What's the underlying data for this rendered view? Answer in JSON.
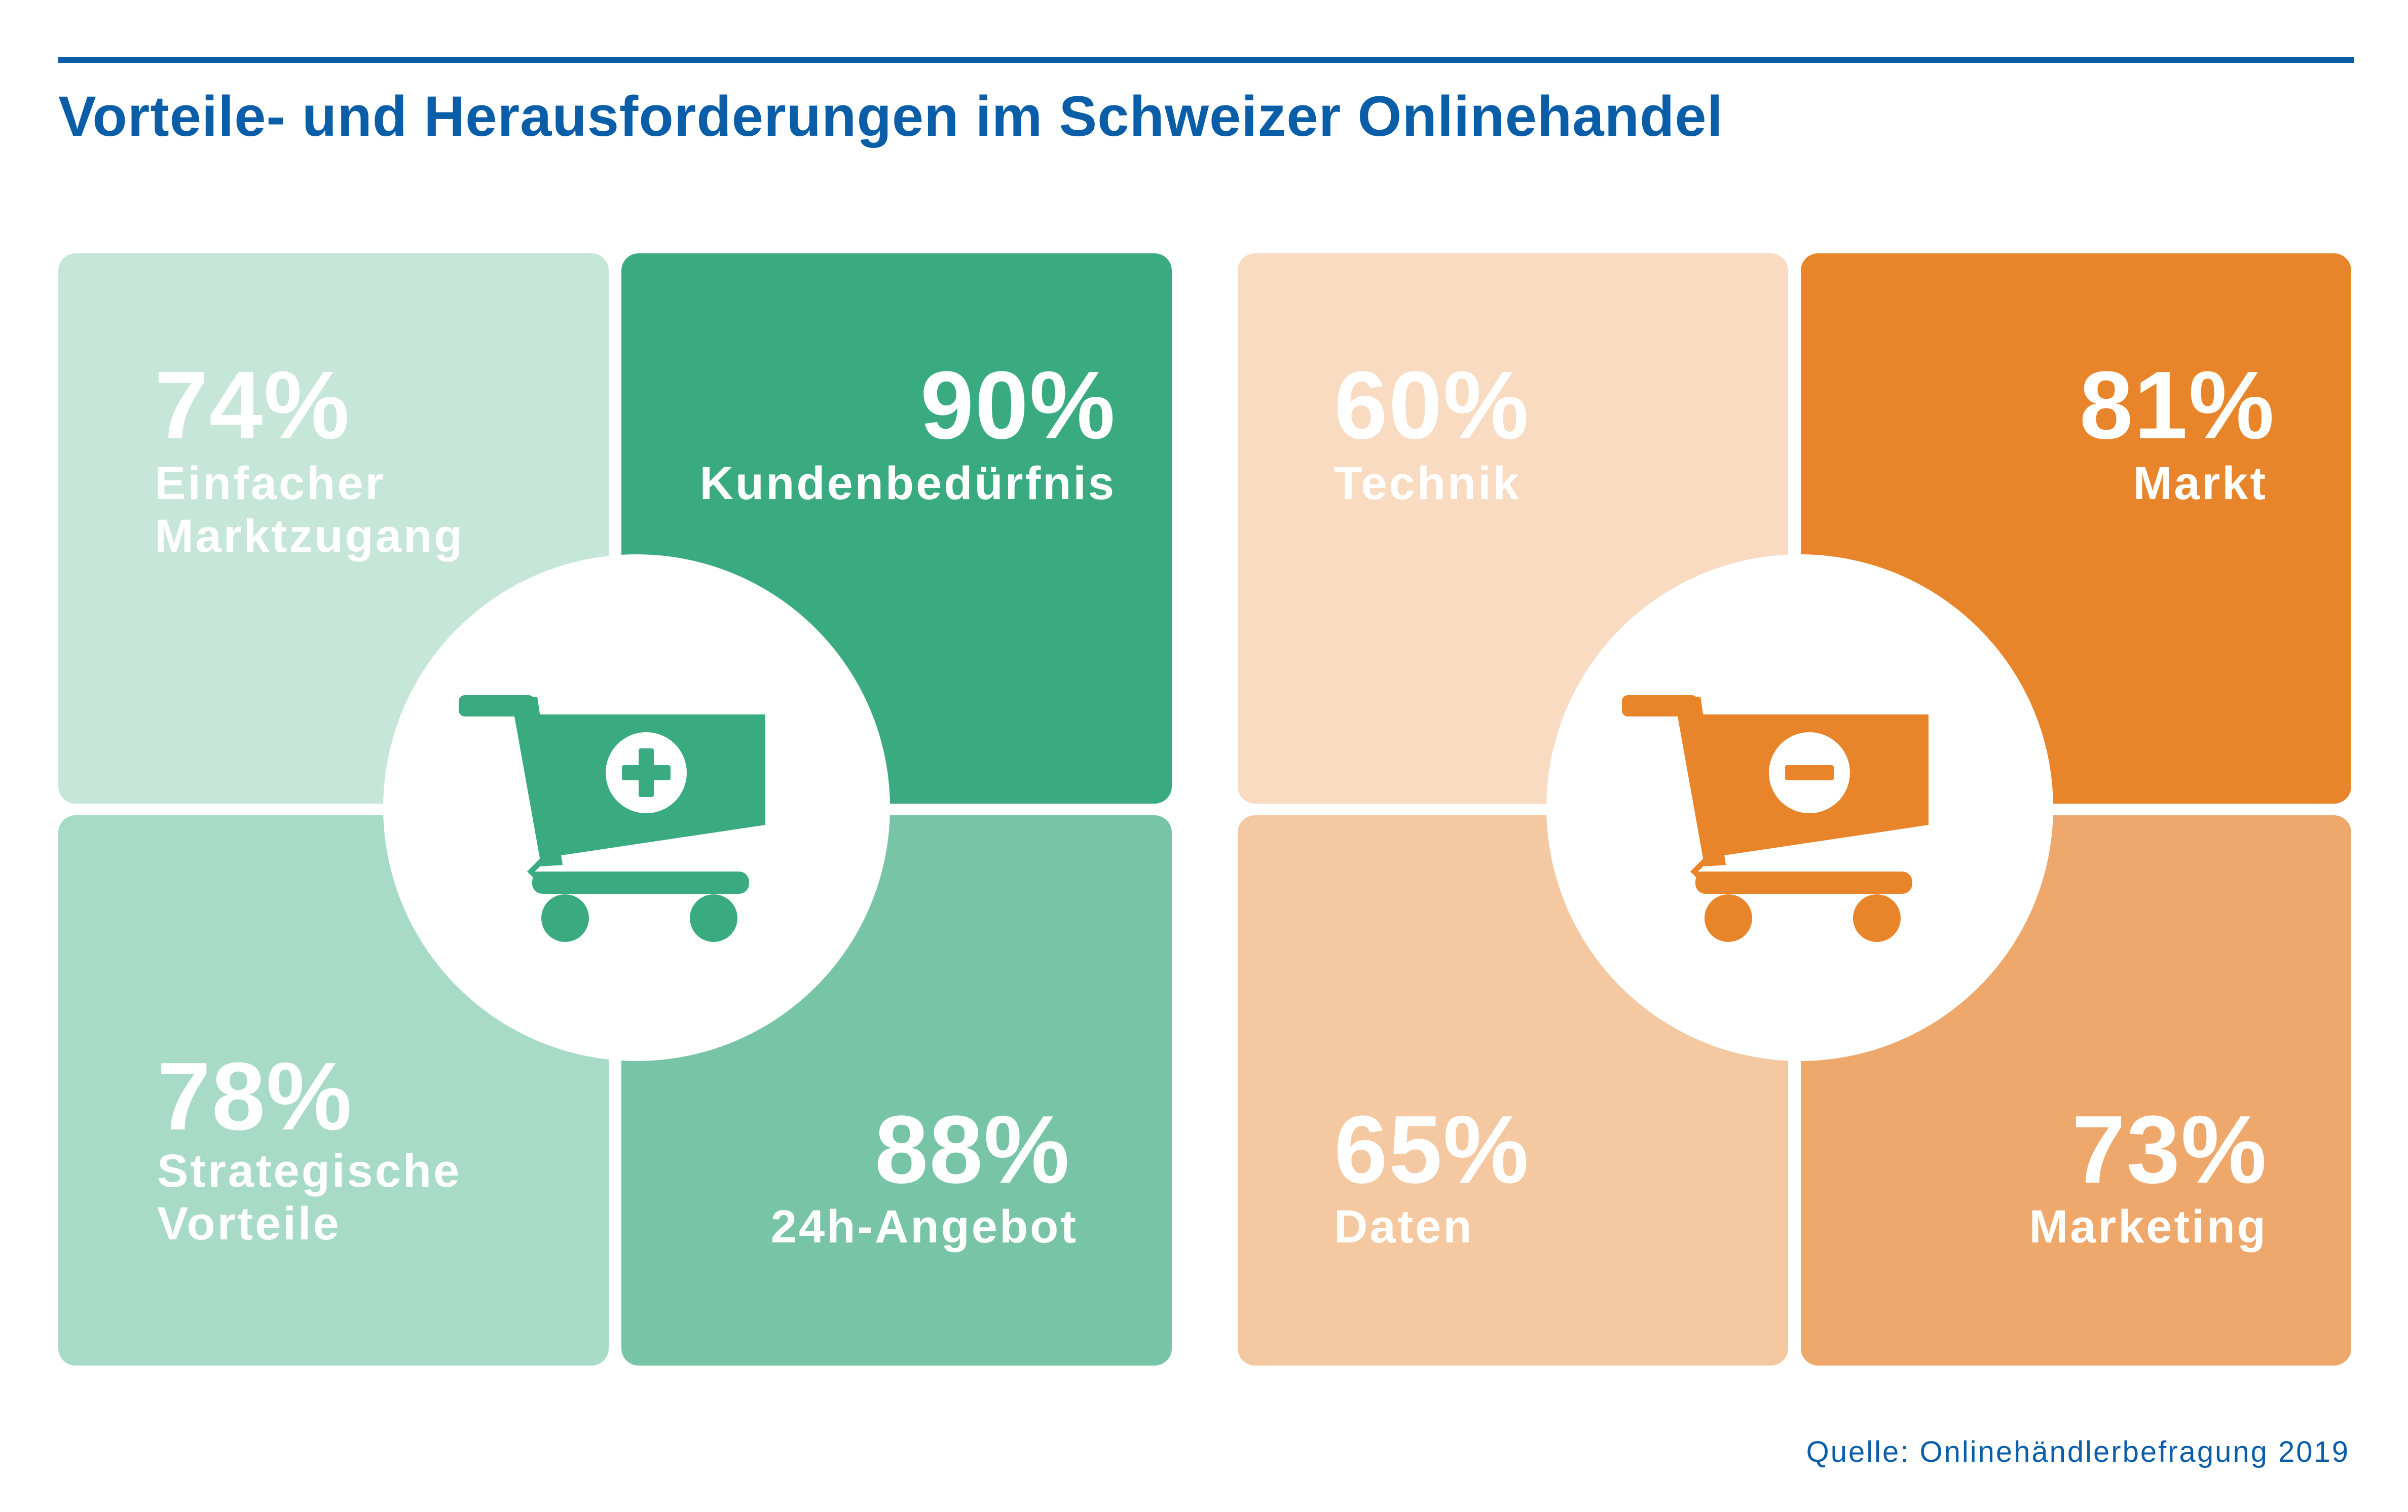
{
  "title": "Vorteile- und Herausforderungen im Schweizer Onlinehandel",
  "source": "Quelle: Onlinehändlerbefragung 2019",
  "colors": {
    "title_blue": "#0a5ea8",
    "green_lightest": "#c6e6da",
    "green_dark": "#3aab80",
    "green_light": "#a7dbc7",
    "green_mid": "#77c4a7",
    "orange_lightest": "#f8dbc1",
    "orange_dark": "#e8842a",
    "orange_light": "#f4c8a0",
    "orange_mid": "#eea86b"
  },
  "icons": {
    "advantages": "cart-plus-icon",
    "challenges": "cart-minus-icon"
  },
  "chart_data": [
    {
      "type": "table",
      "group": "Vorteile",
      "categories": [
        "Einfacher Marktzugang",
        "Kundenbedürfnis",
        "Strategische Vorteile",
        "24h-Angebot"
      ],
      "values": [
        74,
        90,
        78,
        88
      ],
      "unit": "%",
      "items": [
        {
          "value": 74,
          "value_label": "74%",
          "label": "Einfacher\nMarktzugang"
        },
        {
          "value": 90,
          "value_label": "90%",
          "label": "Kundenbedürfnis"
        },
        {
          "value": 78,
          "value_label": "78%",
          "label": "Strategische\nVorteile"
        },
        {
          "value": 88,
          "value_label": "88%",
          "label": "24h-Angebot"
        }
      ]
    },
    {
      "type": "table",
      "group": "Herausforderungen",
      "categories": [
        "Technik",
        "Markt",
        "Daten",
        "Marketing"
      ],
      "values": [
        60,
        81,
        65,
        73
      ],
      "unit": "%",
      "items": [
        {
          "value": 60,
          "value_label": "60%",
          "label": "Technik"
        },
        {
          "value": 81,
          "value_label": "81%",
          "label": "Markt"
        },
        {
          "value": 65,
          "value_label": "65%",
          "label": "Daten"
        },
        {
          "value": 73,
          "value_label": "73%",
          "label": "Marketing"
        }
      ]
    }
  ]
}
